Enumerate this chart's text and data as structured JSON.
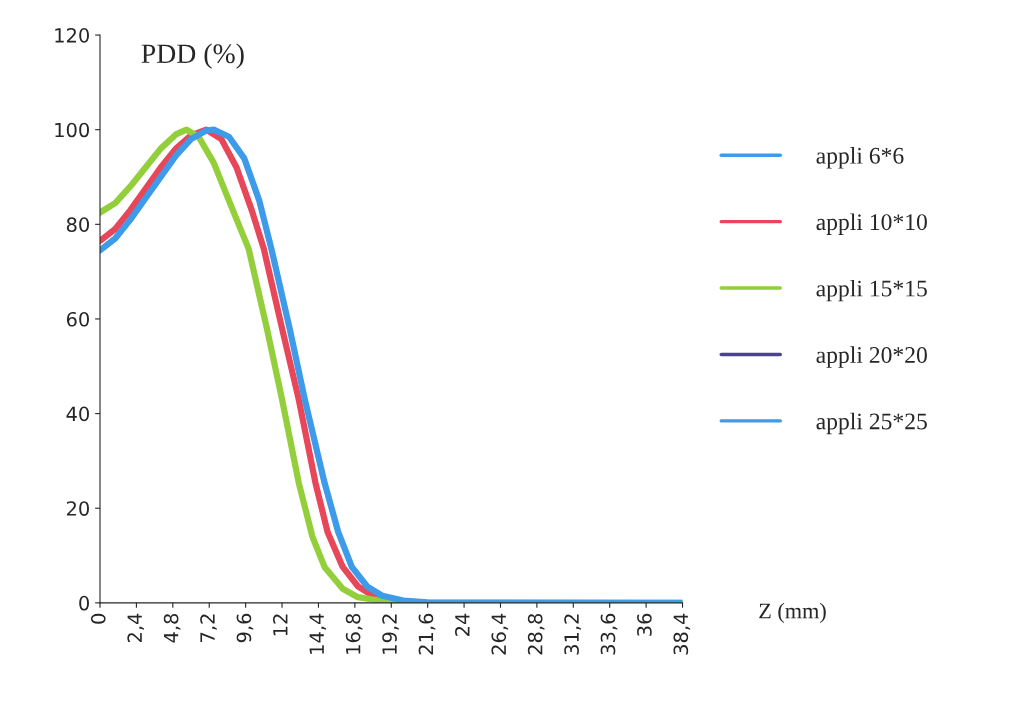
{
  "chart_data": {
    "type": "line",
    "ylabel": "PDD (%)",
    "xlabel": "Z (mm)",
    "xlim": [
      0,
      38.4
    ],
    "ylim": [
      0,
      120
    ],
    "xticks": [
      0,
      {
        "value": 2.4,
        "label": "2,4"
      },
      {
        "value": 4.8,
        "label": "4,8"
      },
      {
        "value": 7.2,
        "label": "7,2"
      },
      {
        "value": 9.6,
        "label": "9,6"
      },
      12,
      {
        "value": 14.4,
        "label": "14,4"
      },
      {
        "value": 16.8,
        "label": "16,8"
      },
      {
        "value": 19.2,
        "label": "19,2"
      },
      {
        "value": 21.6,
        "label": "21,6"
      },
      24,
      {
        "value": 26.4,
        "label": "26,4"
      },
      {
        "value": 28.8,
        "label": "28,8"
      },
      {
        "value": 31.2,
        "label": "31,2"
      },
      {
        "value": 33.6,
        "label": "33,6"
      },
      36,
      {
        "value": 38.4,
        "label": "38,4"
      }
    ],
    "yticks": [
      0,
      20,
      40,
      60,
      80,
      100,
      120
    ],
    "grid": false,
    "legend": "right",
    "marker": "none",
    "line_style": "solid",
    "series": [
      {
        "name": "appli 6*6",
        "color": "#3d9be9"
      },
      {
        "name": "appli 10*10",
        "color": "#e8475a",
        "x": [
          0,
          1,
          2,
          3,
          4,
          5,
          6,
          7,
          8,
          9,
          10,
          10.8,
          12,
          13.1,
          14.2,
          15,
          16,
          17,
          18,
          19.5
        ],
        "values": [
          76.5,
          79,
          83,
          87.5,
          92,
          96,
          98.8,
          100,
          98,
          92,
          83,
          74.8,
          58,
          43,
          25.4,
          15,
          7.6,
          3.5,
          1.5,
          0.5
        ]
      },
      {
        "name": "appli 15*15",
        "color": "#93cf3a",
        "x": [
          0,
          1,
          2,
          3,
          4,
          5,
          5.7,
          6.5,
          7.5,
          8.5,
          9.8,
          11,
          12,
          13.1,
          14,
          14.8,
          16,
          17,
          18.6,
          20,
          38.4
        ],
        "values": [
          82.5,
          84.5,
          88,
          92,
          96,
          99,
          100,
          98.5,
          93,
          85,
          74.8,
          58,
          43,
          25.4,
          14,
          7.6,
          3,
          1.2,
          0.4,
          0,
          0
        ]
      },
      {
        "name": "appli 20*20",
        "color": "#4b3fa3"
      },
      {
        "name": "appli 25*25",
        "color": "#3d9be9",
        "x": [
          0,
          1,
          2,
          3,
          4,
          5,
          6,
          7,
          7.5,
          8.5,
          9.5,
          10.5,
          11.3,
          12.5,
          13.5,
          14.8,
          15.7,
          16.6,
          17.6,
          18.6,
          20,
          21.6,
          38.4
        ],
        "values": [
          74.5,
          77,
          81,
          85.5,
          90,
          94.5,
          98,
          99.8,
          100,
          98.5,
          94,
          85,
          74.8,
          58,
          43,
          25.4,
          15,
          7.6,
          3.5,
          1.5,
          0.5,
          0.1,
          0
        ]
      }
    ]
  }
}
